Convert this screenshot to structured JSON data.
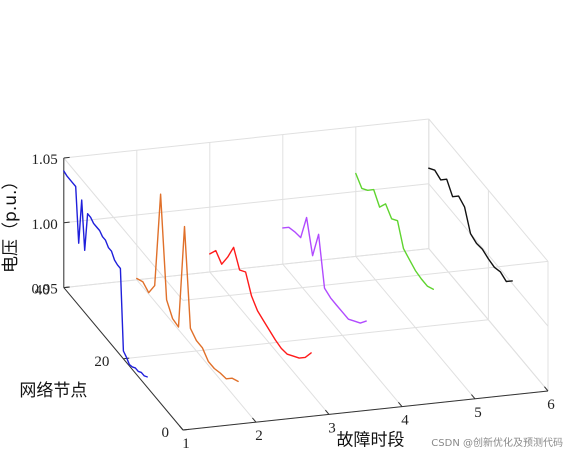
{
  "chart_data": {
    "type": "line",
    "view": "3d",
    "xlabel": "故障时段",
    "ylabel": "网络节点",
    "zlabel": "电压（p.u.）",
    "xlim": [
      1,
      6
    ],
    "ylim": [
      0,
      40
    ],
    "zlim": [
      0.95,
      1.05
    ],
    "x_ticks": [
      "1",
      "2",
      "3",
      "4",
      "5",
      "6"
    ],
    "y_ticks": [
      "0",
      "20",
      "40"
    ],
    "z_ticks": [
      "0.95",
      "1.00",
      "1.05"
    ],
    "grid": true,
    "series": [
      {
        "x": 1,
        "color": "#1f1fdb",
        "nodes": [
          40,
          39,
          38,
          37,
          36,
          35,
          34,
          33,
          32,
          31,
          30,
          29,
          28,
          27,
          26,
          25,
          24,
          23,
          22,
          21,
          20,
          19,
          18,
          17,
          16,
          15,
          14,
          13,
          12
        ],
        "values": [
          1.04,
          1.039,
          1.039,
          1.039,
          1.039,
          0.998,
          1.034,
          0.998,
          1.029,
          1.029,
          1.027,
          1.027,
          1.027,
          1.025,
          1.025,
          1.022,
          1.022,
          1.018,
          1.017,
          1.017,
          0.956,
          0.954,
          0.951,
          0.952,
          0.954,
          0.954,
          0.956,
          0.956,
          0.958
        ]
      },
      {
        "x": 2,
        "color": "#e0702a",
        "nodes": [
          40,
          38,
          36,
          34,
          32,
          30,
          28,
          26,
          24,
          22,
          20,
          18,
          16,
          14,
          12,
          10,
          8,
          6
        ],
        "values": [
          0.951,
          0.954,
          0.951,
          0.962,
          1.038,
          0.962,
          0.953,
          0.952,
          1.035,
          0.962,
          0.958,
          0.958,
          0.953,
          0.953,
          0.955,
          0.956,
          0.962,
          0.965
        ]
      },
      {
        "x": 3,
        "color": "#ff1a1a",
        "nodes": [
          40,
          38,
          36,
          34,
          32,
          30,
          28,
          26,
          24,
          22,
          20,
          18,
          16,
          14,
          12,
          10,
          8,
          6
        ],
        "values": [
          0.964,
          0.972,
          0.967,
          0.978,
          0.991,
          0.979,
          0.983,
          0.97,
          0.964,
          0.962,
          0.96,
          0.958,
          0.957,
          0.958,
          0.962,
          0.966,
          0.972,
          0.981
        ]
      },
      {
        "x": 4,
        "color": "#b14bff",
        "nodes": [
          40,
          38,
          36,
          34,
          32,
          30,
          28,
          26,
          24,
          22,
          20,
          18,
          16,
          14,
          12
        ],
        "values": [
          0.978,
          0.984,
          0.986,
          0.987,
          1.008,
          0.984,
          1.006,
          0.97,
          0.968,
          0.968,
          0.968,
          0.968,
          0.972,
          0.976,
          0.983
        ]
      },
      {
        "x": 5,
        "color": "#5fd42f",
        "nodes": [
          40,
          38,
          36,
          34,
          32,
          30,
          28,
          26,
          24,
          22,
          20,
          18,
          16,
          14
        ],
        "values": [
          1.014,
          1.008,
          1.012,
          1.018,
          1.01,
          1.018,
          1.012,
          1.016,
          1.0,
          0.997,
          0.994,
          0.993,
          0.993,
          0.996
        ]
      },
      {
        "x": 6,
        "color": "#111111",
        "nodes": [
          40,
          38,
          36,
          34,
          32,
          30,
          28,
          26,
          24,
          22,
          20,
          18,
          16,
          14,
          12
        ],
        "values": [
          1.012,
          1.016,
          1.014,
          1.02,
          1.012,
          1.018,
          1.015,
          1.0,
          0.998,
          0.999,
          0.997,
          0.996,
          0.998,
          0.996,
          1.002
        ]
      }
    ]
  },
  "watermark": "CSDN @创新优化及预测代码"
}
